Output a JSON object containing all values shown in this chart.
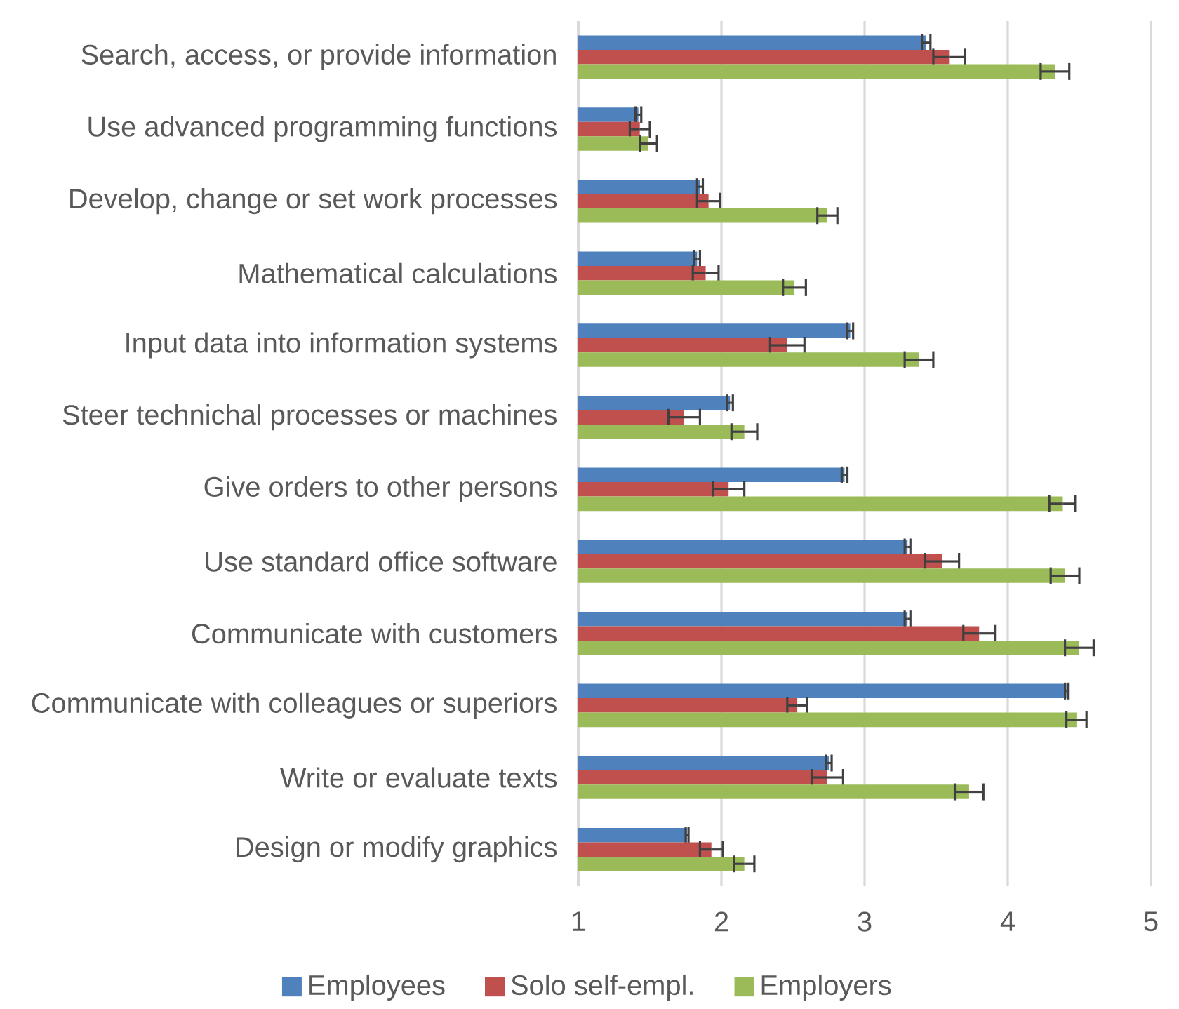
{
  "chart_data": {
    "type": "bar",
    "orientation": "horizontal",
    "categories": [
      "Search, access, or provide information",
      "Use advanced programming functions",
      "Develop, change or set work processes",
      "Mathematical calculations",
      "Input data into information systems",
      "Steer technichal processes or machines",
      "Give orders to other persons",
      "Use standard office software",
      "Communicate with customers",
      "Communicate with colleagues or superiors",
      "Write or evaluate texts",
      "Design or modify graphics"
    ],
    "series": [
      {
        "name": "Employees",
        "color": "#4f81bd",
        "values": [
          3.43,
          1.42,
          1.85,
          1.83,
          2.9,
          2.06,
          2.86,
          3.3,
          3.3,
          4.41,
          2.75,
          1.76
        ],
        "errors": [
          0.03,
          0.02,
          0.02,
          0.02,
          0.02,
          0.02,
          0.02,
          0.02,
          0.02,
          0.01,
          0.02,
          0.01
        ]
      },
      {
        "name": "Solo self-empl.",
        "color": "#c0504d",
        "values": [
          3.59,
          1.43,
          1.91,
          1.89,
          2.46,
          1.74,
          2.05,
          3.54,
          3.8,
          2.53,
          2.74,
          1.93
        ],
        "errors": [
          0.11,
          0.07,
          0.08,
          0.09,
          0.12,
          0.11,
          0.11,
          0.12,
          0.11,
          0.07,
          0.11,
          0.08
        ]
      },
      {
        "name": "Employers",
        "color": "#9bbb59",
        "values": [
          4.33,
          1.49,
          2.74,
          2.51,
          3.38,
          2.16,
          4.38,
          4.4,
          4.5,
          4.48,
          3.73,
          2.16
        ],
        "errors": [
          0.1,
          0.06,
          0.07,
          0.08,
          0.1,
          0.09,
          0.09,
          0.1,
          0.1,
          0.07,
          0.1,
          0.07
        ]
      }
    ],
    "xlim": [
      1,
      5
    ],
    "xticks": [
      1,
      2,
      3,
      4,
      5
    ],
    "grid": "x",
    "legend": "bottom"
  }
}
